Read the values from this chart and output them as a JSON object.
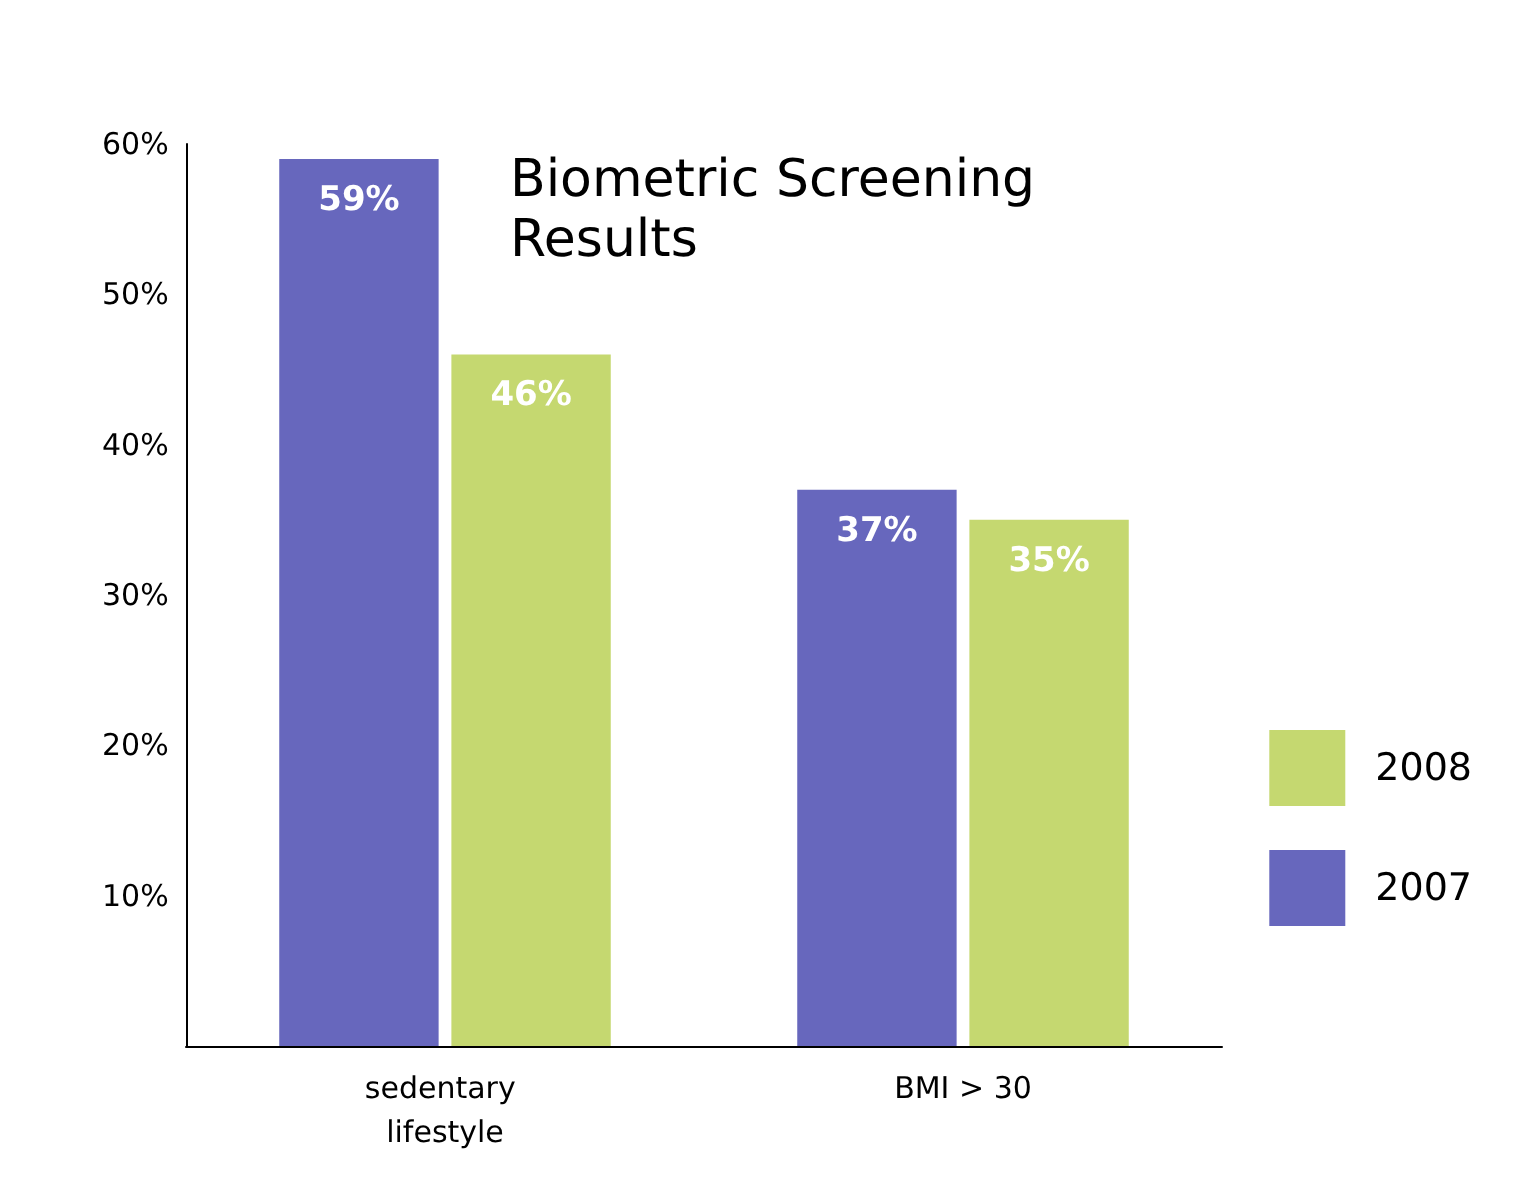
{
  "chart_data": {
    "type": "bar",
    "title": "Biometric Screening Results",
    "categories": [
      "sedentary lifestyle",
      "BMI > 30"
    ],
    "series": [
      {
        "name": "2007",
        "color": "#6767bd",
        "values": [
          59,
          37
        ],
        "value_labels": [
          "59%",
          "37%"
        ]
      },
      {
        "name": "2008",
        "color": "#c5d870",
        "values": [
          46,
          35
        ],
        "value_labels": [
          "46%",
          "35%"
        ]
      }
    ],
    "ylim": [
      0,
      60
    ],
    "yticks": [
      {
        "value": 10,
        "label": "10%"
      },
      {
        "value": 20,
        "label": "20%"
      },
      {
        "value": 30,
        "label": "30%"
      },
      {
        "value": 40,
        "label": "40%"
      },
      {
        "value": 50,
        "label": "50%"
      },
      {
        "value": 60,
        "label": "60%"
      }
    ],
    "grid": false,
    "legend": "right"
  }
}
